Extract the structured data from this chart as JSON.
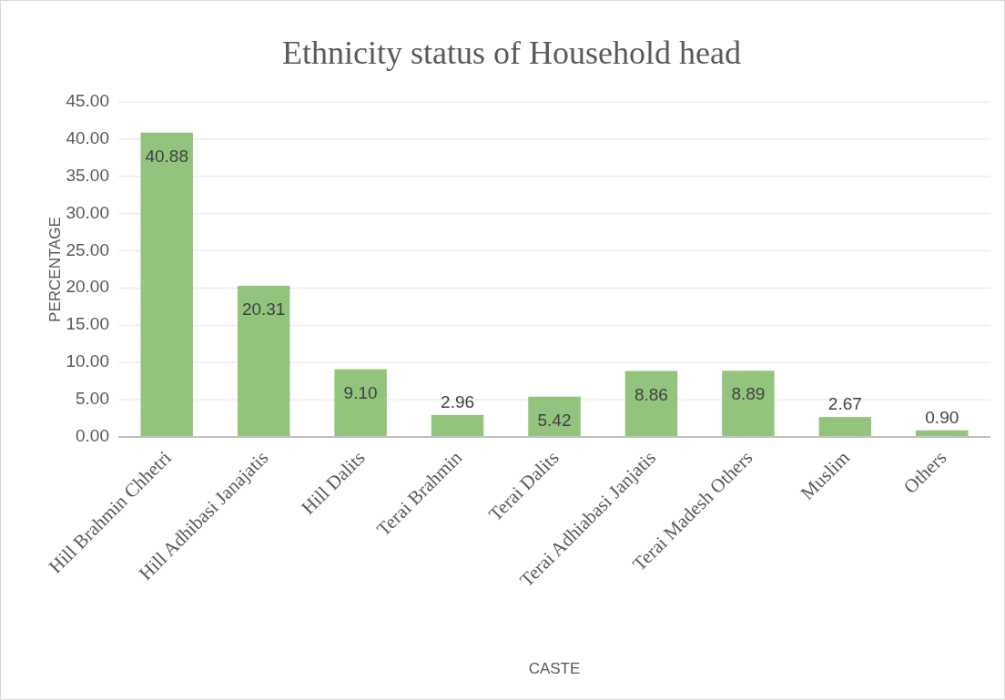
{
  "chart_data": {
    "type": "bar",
    "title": "Ethnicity status of Household head",
    "xlabel": "CASTE",
    "ylabel": "PERCENTAGE",
    "categories": [
      "Hill Brahmin Chhetri",
      "Hill Adhibasi Janajatis",
      "Hill Dalits",
      "Terai Brahmin",
      "Terai Dalits",
      "Terai Adhiabasi Janjatis",
      "Terai Madesh Others",
      "Muslim",
      "Others"
    ],
    "values": [
      40.88,
      20.31,
      9.1,
      2.96,
      5.42,
      8.86,
      8.89,
      2.67,
      0.9
    ],
    "value_labels": [
      "40.88",
      "20.31",
      "9.10",
      "2.96",
      "5.42",
      "8.86",
      "8.89",
      "2.67",
      "0.90"
    ],
    "color": "#93c47d",
    "ylim": [
      0,
      45
    ],
    "yticks": [
      {
        "value": 0,
        "label": "0.00"
      },
      {
        "value": 5,
        "label": "5.00"
      },
      {
        "value": 10,
        "label": "10.00"
      },
      {
        "value": 15,
        "label": "15.00"
      },
      {
        "value": 20,
        "label": "20.00"
      },
      {
        "value": 25,
        "label": "25.00"
      },
      {
        "value": 30,
        "label": "30.00"
      },
      {
        "value": 35,
        "label": "35.00"
      },
      {
        "value": 40,
        "label": "40.00"
      },
      {
        "value": 45,
        "label": "45.00"
      }
    ],
    "grid": "y"
  }
}
